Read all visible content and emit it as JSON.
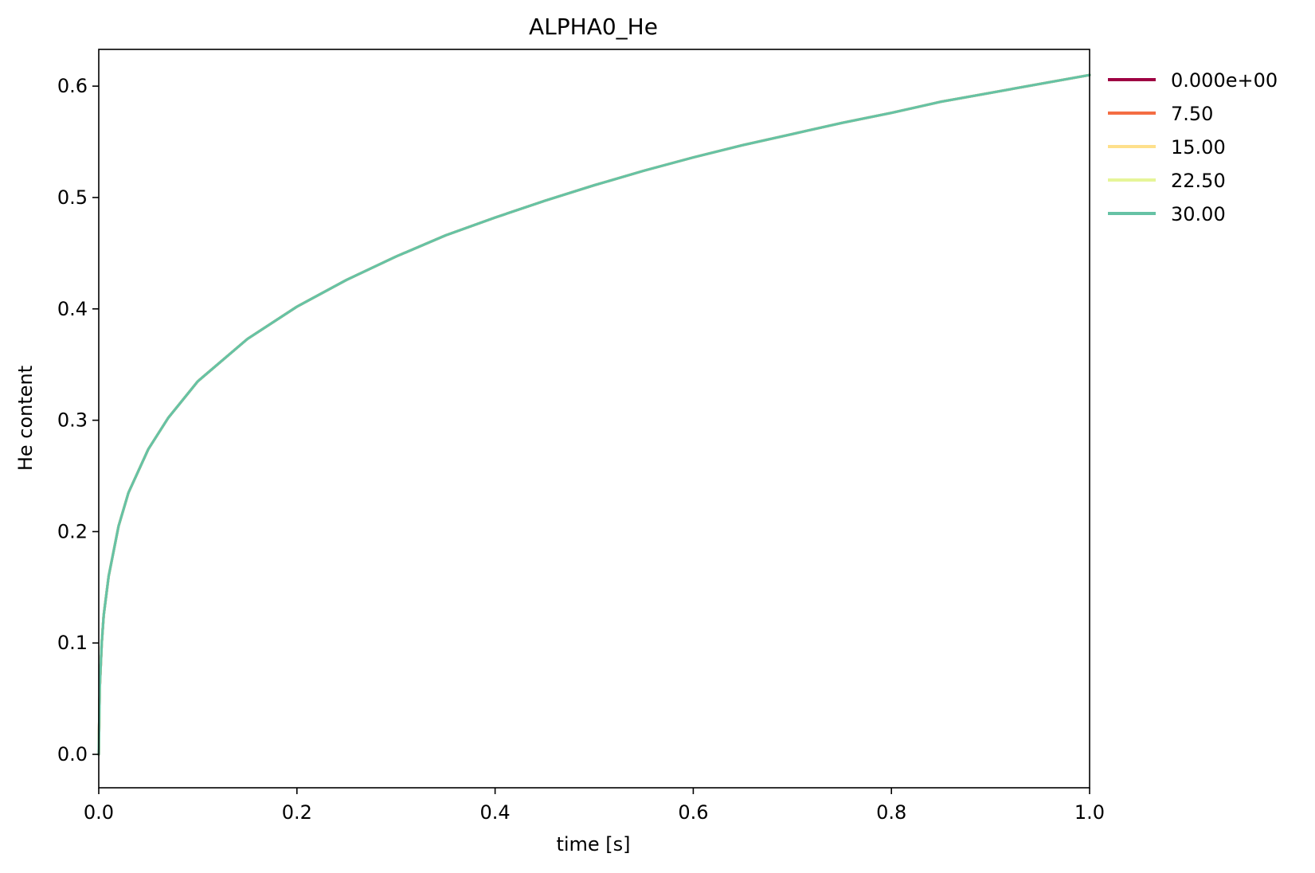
{
  "chart_data": {
    "type": "line",
    "title": "ALPHA0_He",
    "xlabel": "time [s]",
    "ylabel": "He content",
    "xlim": [
      0.0,
      1.0
    ],
    "ylim": [
      -0.03,
      0.633
    ],
    "x_ticks": [
      {
        "value": 0.0,
        "label": "0.0"
      },
      {
        "value": 0.2,
        "label": "0.2"
      },
      {
        "value": 0.4,
        "label": "0.4"
      },
      {
        "value": 0.6,
        "label": "0.6"
      },
      {
        "value": 0.8,
        "label": "0.8"
      },
      {
        "value": 1.0,
        "label": "1.0"
      }
    ],
    "y_ticks": [
      {
        "value": 0.0,
        "label": "0.0"
      },
      {
        "value": 0.1,
        "label": "0.1"
      },
      {
        "value": 0.2,
        "label": "0.2"
      },
      {
        "value": 0.3,
        "label": "0.3"
      },
      {
        "value": 0.4,
        "label": "0.4"
      },
      {
        "value": 0.5,
        "label": "0.5"
      },
      {
        "value": 0.6,
        "label": "0.6"
      }
    ],
    "grid": false,
    "legend_position": "outside-right-top",
    "x": [
      0.0,
      0.001,
      0.003,
      0.005,
      0.01,
      0.02,
      0.03,
      0.05,
      0.07,
      0.1,
      0.15,
      0.2,
      0.25,
      0.3,
      0.35,
      0.4,
      0.45,
      0.5,
      0.55,
      0.6,
      0.65,
      0.7,
      0.75,
      0.8,
      0.85,
      0.9,
      0.95,
      1.0
    ],
    "series": [
      {
        "name": "0.000e+00",
        "color": "#9e0142",
        "values": [
          0.0,
          0.06,
          0.1,
          0.125,
          0.16,
          0.205,
          0.235,
          0.274,
          0.302,
          0.335,
          0.373,
          0.402,
          0.426,
          0.447,
          0.466,
          0.482,
          0.497,
          0.511,
          0.524,
          0.536,
          0.547,
          0.557,
          0.567,
          0.576,
          0.586,
          0.594,
          0.602,
          0.61
        ]
      },
      {
        "name": "7.50",
        "color": "#f46d43",
        "values": [
          0.0,
          0.06,
          0.1,
          0.125,
          0.16,
          0.205,
          0.235,
          0.274,
          0.302,
          0.335,
          0.373,
          0.402,
          0.426,
          0.447,
          0.466,
          0.482,
          0.497,
          0.511,
          0.524,
          0.536,
          0.547,
          0.557,
          0.567,
          0.576,
          0.586,
          0.594,
          0.602,
          0.61
        ]
      },
      {
        "name": "15.00",
        "color": "#fee08b",
        "values": [
          0.0,
          0.06,
          0.1,
          0.125,
          0.16,
          0.205,
          0.235,
          0.274,
          0.302,
          0.335,
          0.373,
          0.402,
          0.426,
          0.447,
          0.466,
          0.482,
          0.497,
          0.511,
          0.524,
          0.536,
          0.547,
          0.557,
          0.567,
          0.576,
          0.586,
          0.594,
          0.602,
          0.61
        ]
      },
      {
        "name": "22.50",
        "color": "#e6f598",
        "values": [
          0.0,
          0.06,
          0.1,
          0.125,
          0.16,
          0.205,
          0.235,
          0.274,
          0.302,
          0.335,
          0.373,
          0.402,
          0.426,
          0.447,
          0.466,
          0.482,
          0.497,
          0.511,
          0.524,
          0.536,
          0.547,
          0.557,
          0.567,
          0.576,
          0.586,
          0.594,
          0.602,
          0.61
        ]
      },
      {
        "name": "30.00",
        "color": "#66c2a5",
        "values": [
          0.0,
          0.06,
          0.1,
          0.125,
          0.16,
          0.205,
          0.235,
          0.274,
          0.302,
          0.335,
          0.373,
          0.402,
          0.426,
          0.447,
          0.466,
          0.482,
          0.497,
          0.511,
          0.524,
          0.536,
          0.547,
          0.557,
          0.567,
          0.576,
          0.586,
          0.594,
          0.602,
          0.61
        ]
      }
    ]
  }
}
